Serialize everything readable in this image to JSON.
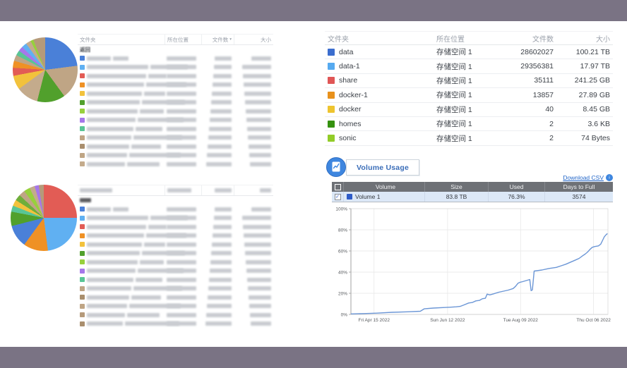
{
  "frame_color": "#7a7384",
  "left_top": {
    "table": {
      "headers": [
        {
          "label": "文件夹",
          "align": "left"
        },
        {
          "label": "所在位置",
          "align": "left"
        },
        {
          "label": "文件数",
          "align": "right",
          "sort_icon": "▾"
        },
        {
          "label": "大小",
          "align": "right"
        }
      ],
      "back_label": "返回",
      "rows_blurred": true,
      "row_chips": [
        "#4a80d8",
        "#60b0f2",
        "#e25c55",
        "#ef9125",
        "#f2c23c",
        "#51a02c",
        "#97d03c",
        "#a677ea",
        "#59c596",
        "#bfa585",
        "#a98e6d",
        "#bfa585",
        "#c4ab8c"
      ]
    }
  },
  "left_bottom": {
    "table": {
      "header_blurred": true,
      "back_blurred": true,
      "rows_blurred": true,
      "row_chips": [
        "#4a80d8",
        "#60b0f2",
        "#e25c55",
        "#ef9125",
        "#f2c23c",
        "#51a02c",
        "#97d03c",
        "#a677ea",
        "#59c596",
        "#bfa585",
        "#a98e6d",
        "#bfa585",
        "#b59a7a",
        "#a98e6d"
      ]
    }
  },
  "right": {
    "folder_table": {
      "headers": [
        {
          "label": "文件夹",
          "align": "left"
        },
        {
          "label": "所在位置",
          "align": "left"
        },
        {
          "label": "文件数",
          "align": "right"
        },
        {
          "label": "大小",
          "align": "right"
        }
      ],
      "rows": [
        {
          "chip": "#3b6dce",
          "name": "data",
          "location": "存储空间 1",
          "files": "28602027",
          "size": "100.21 TB"
        },
        {
          "chip": "#56aaf0",
          "name": "data-1",
          "location": "存储空间 1",
          "files": "29356381",
          "size": "17.97 TB"
        },
        {
          "chip": "#e05656",
          "name": "share",
          "location": "存储空间 1",
          "files": "35111",
          "size": "241.25 GB"
        },
        {
          "chip": "#e8911c",
          "name": "docker-1",
          "location": "存储空间 1",
          "files": "13857",
          "size": "27.89 GB"
        },
        {
          "chip": "#eec42f",
          "name": "docker",
          "location": "存储空间 1",
          "files": "40",
          "size": "8.45 GB"
        },
        {
          "chip": "#35910f",
          "name": "homes",
          "location": "存储空间 1",
          "files": "2",
          "size": "3.6 KB"
        },
        {
          "chip": "#92cc28",
          "name": "sonic",
          "location": "存储空间 1",
          "files": "2",
          "size": "74 Bytes"
        }
      ]
    },
    "volume_usage": {
      "title": "Volume Usage",
      "download_label": "Download CSV",
      "table": {
        "headers": [
          "Volume",
          "Size",
          "Used",
          "Days to Full"
        ],
        "rows": [
          {
            "checked": true,
            "chip": "#2d5bc8",
            "name": "Volume 1",
            "size": "83.8 TB",
            "used": "76.3%",
            "days_to_full": "3574"
          }
        ]
      }
    }
  },
  "chart_data": [
    {
      "type": "pie",
      "name": "top-left-folder-size-pie",
      "slices": [
        {
          "color": "#4a80d8",
          "pct": 23
        },
        {
          "color": "#bfa585",
          "pct": 17
        },
        {
          "color": "#51a02c",
          "pct": 14
        },
        {
          "color": "#c4ab8c",
          "pct": 11
        },
        {
          "color": "#f2c23c",
          "pct": 7
        },
        {
          "color": "#e25c55",
          "pct": 4
        },
        {
          "color": "#ef9125",
          "pct": 3.5
        },
        {
          "color": "#bfa585",
          "pct": 3
        },
        {
          "color": "#59c596",
          "pct": 2.5
        },
        {
          "color": "#a677ea",
          "pct": 2.5
        },
        {
          "color": "#60b0f2",
          "pct": 2.5
        },
        {
          "color": "#c4ab8c",
          "pct": 2.5
        },
        {
          "color": "#97d03c",
          "pct": 1.5
        },
        {
          "color": "#b59a7a",
          "pct": 5.5
        }
      ]
    },
    {
      "type": "pie",
      "name": "bottom-left-folder-size-pie",
      "slices": [
        {
          "color": "#e25c55",
          "pct": 25
        },
        {
          "color": "#60b0f2",
          "pct": 23
        },
        {
          "color": "#ef9125",
          "pct": 12
        },
        {
          "color": "#4a80d8",
          "pct": 11
        },
        {
          "color": "#51a02c",
          "pct": 7
        },
        {
          "color": "#59c596",
          "pct": 3
        },
        {
          "color": "#f2c23c",
          "pct": 3
        },
        {
          "color": "#6fae3a",
          "pct": 3
        },
        {
          "color": "#bfa585",
          "pct": 3
        },
        {
          "color": "#97d03c",
          "pct": 3
        },
        {
          "color": "#c4ab8c",
          "pct": 2.5
        },
        {
          "color": "#a677ea",
          "pct": 2
        },
        {
          "color": "#b59a7a",
          "pct": 2.5
        }
      ]
    },
    {
      "type": "line",
      "name": "volume-usage-history",
      "title": "Volume Usage",
      "ylim": [
        0,
        100
      ],
      "yticks": [
        0,
        20,
        40,
        60,
        80,
        100
      ],
      "ytick_labels": [
        "0%",
        "20%",
        "40%",
        "60%",
        "80%",
        "100%"
      ],
      "grid": true,
      "xticks": [
        {
          "f": 0.09,
          "label": "Fri Apr 15 2022"
        },
        {
          "f": 0.376,
          "label": "Sun Jun 12 2022"
        },
        {
          "f": 0.66,
          "label": "Tue Aug 09 2022"
        },
        {
          "f": 0.944,
          "label": "Thu Oct 06 2022"
        }
      ],
      "series": [
        {
          "name": "Volume 1",
          "color": "#6b96d6",
          "points": [
            [
              0.0,
              0.5
            ],
            [
              0.05,
              0.8
            ],
            [
              0.1,
              1.2
            ],
            [
              0.16,
              2.0
            ],
            [
              0.22,
              2.5
            ],
            [
              0.27,
              3.0
            ],
            [
              0.285,
              5.3
            ],
            [
              0.32,
              6.0
            ],
            [
              0.37,
              6.6
            ],
            [
              0.41,
              7.2
            ],
            [
              0.425,
              7.6
            ],
            [
              0.44,
              9.0
            ],
            [
              0.458,
              10.8
            ],
            [
              0.472,
              11.3
            ],
            [
              0.486,
              12.8
            ],
            [
              0.5,
              13.3
            ],
            [
              0.511,
              14.8
            ],
            [
              0.523,
              15.3
            ],
            [
              0.53,
              19.2
            ],
            [
              0.54,
              18.5
            ],
            [
              0.555,
              19.5
            ],
            [
              0.575,
              21.0
            ],
            [
              0.594,
              22.0
            ],
            [
              0.612,
              23.0
            ],
            [
              0.631,
              24.5
            ],
            [
              0.64,
              26.5
            ],
            [
              0.65,
              29.5
            ],
            [
              0.659,
              30.5
            ],
            [
              0.668,
              31.0
            ],
            [
              0.682,
              32.0
            ],
            [
              0.696,
              33.0
            ],
            [
              0.701,
              22.5
            ],
            [
              0.706,
              23.2
            ],
            [
              0.713,
              41.0
            ],
            [
              0.743,
              42.0
            ],
            [
              0.771,
              43.5
            ],
            [
              0.799,
              44.5
            ],
            [
              0.818,
              46.0
            ],
            [
              0.836,
              47.5
            ],
            [
              0.855,
              49.5
            ],
            [
              0.874,
              51.5
            ],
            [
              0.888,
              53.0
            ],
            [
              0.902,
              55.5
            ],
            [
              0.911,
              57.0
            ],
            [
              0.921,
              59.0
            ],
            [
              0.93,
              61.5
            ],
            [
              0.939,
              63.5
            ],
            [
              0.949,
              64.2
            ],
            [
              0.963,
              64.8
            ],
            [
              0.972,
              66.5
            ],
            [
              0.979,
              70.0
            ],
            [
              0.986,
              73.5
            ],
            [
              0.993,
              75.5
            ],
            [
              0.998,
              76.5
            ]
          ]
        }
      ]
    }
  ]
}
